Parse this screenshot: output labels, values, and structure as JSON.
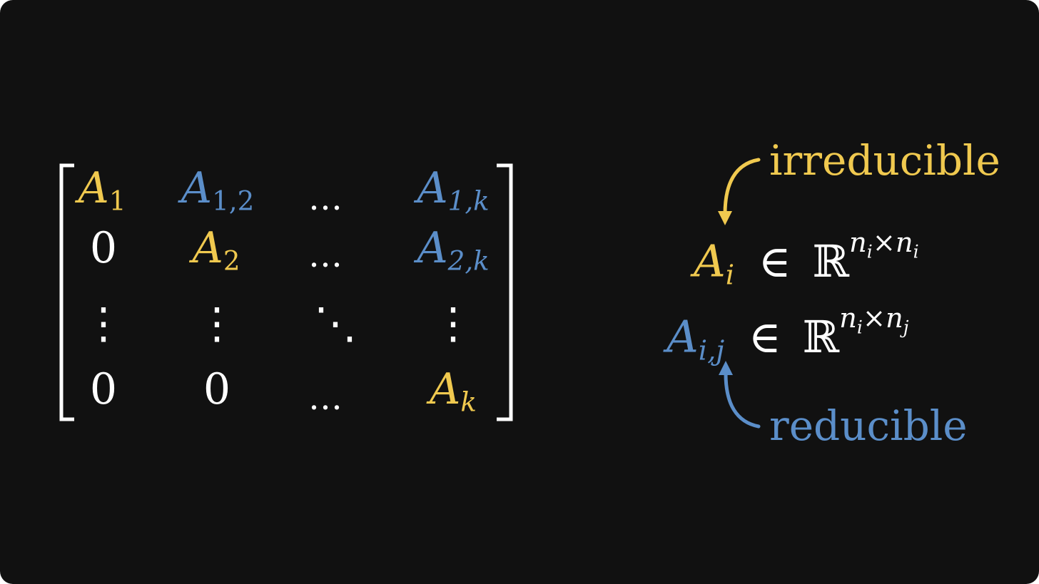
{
  "colors": {
    "background": "#111111",
    "white": "#ffffff",
    "yellow": "#f0c94f",
    "blue": "#5b8ec9"
  },
  "matrix": {
    "rows": [
      [
        {
          "base": "A",
          "sub": "1",
          "color": "yellow"
        },
        {
          "base": "A",
          "sub": "1,2",
          "color": "blue"
        },
        {
          "text": "…",
          "color": "white"
        },
        {
          "base": "A",
          "sub": "1,k",
          "color": "blue"
        }
      ],
      [
        {
          "text": "0",
          "color": "white"
        },
        {
          "base": "A",
          "sub": "2",
          "color": "yellow"
        },
        {
          "text": "…",
          "color": "white"
        },
        {
          "base": "A",
          "sub": "2,k",
          "color": "blue"
        }
      ],
      [
        {
          "text": "⋮",
          "color": "white"
        },
        {
          "text": "⋮",
          "color": "white"
        },
        {
          "text": "⋱",
          "color": "white"
        },
        {
          "text": "⋮",
          "color": "white"
        }
      ],
      [
        {
          "text": "0",
          "color": "white"
        },
        {
          "text": "0",
          "color": "white"
        },
        {
          "text": "…",
          "color": "white"
        },
        {
          "base": "A",
          "sub": "k",
          "color": "yellow"
        }
      ]
    ]
  },
  "annotations": {
    "irreducible_label": "irreducible",
    "reducible_label": "reducible",
    "eq1": {
      "lhs_base": "A",
      "lhs_sub": "i",
      "member": "∈",
      "set": "ℝ",
      "sup_a": "n",
      "sup_a_sub": "i",
      "times": "×",
      "sup_b": "n",
      "sup_b_sub": "i"
    },
    "eq2": {
      "lhs_base": "A",
      "lhs_sub": "i,j",
      "member": "∈",
      "set": "ℝ",
      "sup_a": "n",
      "sup_a_sub": "i",
      "times": "×",
      "sup_b": "n",
      "sup_b_sub": "j"
    }
  }
}
